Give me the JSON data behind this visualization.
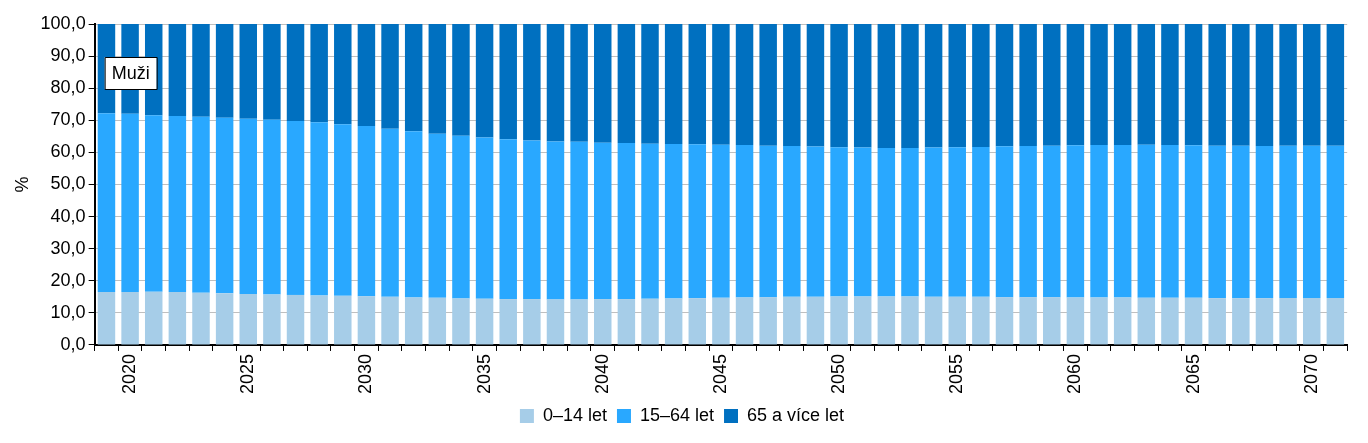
{
  "chart_data": {
    "type": "bar",
    "stacked": true,
    "ylabel": "%",
    "annotations": [
      "Muži"
    ],
    "categories": [
      null,
      "2020",
      null,
      null,
      null,
      null,
      "2025",
      null,
      null,
      null,
      null,
      "2030",
      null,
      null,
      null,
      null,
      "2035",
      null,
      null,
      null,
      null,
      "2040",
      null,
      null,
      null,
      null,
      "2045",
      null,
      null,
      null,
      null,
      "2050",
      null,
      null,
      null,
      null,
      "2055",
      null,
      null,
      null,
      null,
      "2060",
      null,
      null,
      null,
      null,
      "2065",
      null,
      null,
      null,
      null,
      "2070",
      null
    ],
    "series": [
      {
        "name": "0–14 let",
        "color": "#a6cde8",
        "values": [
          16.5,
          16.5,
          16.6,
          16.5,
          16.3,
          16.1,
          15.9,
          15.7,
          15.6,
          15.4,
          15.3,
          15.2,
          15.0,
          14.8,
          14.7,
          14.5,
          14.4,
          14.3,
          14.3,
          14.2,
          14.2,
          14.3,
          14.3,
          14.4,
          14.5,
          14.6,
          14.7,
          14.8,
          14.9,
          15.0,
          15.0,
          15.1,
          15.1,
          15.1,
          15.1,
          15.0,
          15.0,
          15.0,
          14.9,
          14.9,
          14.9,
          14.8,
          14.8,
          14.8,
          14.7,
          14.7,
          14.7,
          14.6,
          14.6,
          14.6,
          14.6,
          14.6,
          14.6
        ]
      },
      {
        "name": "15–64 let",
        "color": "#29a8ff",
        "values": [
          55.7,
          55.5,
          55.0,
          54.8,
          54.8,
          54.7,
          54.6,
          54.5,
          54.2,
          54.0,
          53.5,
          53.0,
          52.4,
          51.8,
          51.1,
          50.7,
          50.2,
          49.8,
          49.4,
          49.2,
          49.1,
          48.7,
          48.6,
          48.3,
          48.1,
          47.9,
          47.7,
          47.5,
          47.2,
          47.0,
          46.8,
          46.5,
          46.4,
          46.3,
          46.3,
          46.5,
          46.6,
          46.7,
          47.0,
          47.1,
          47.2,
          47.4,
          47.5,
          47.5,
          47.7,
          47.6,
          47.5,
          47.5,
          47.5,
          47.4,
          47.5,
          47.5,
          47.5
        ]
      },
      {
        "name": "65 a více let",
        "color": "#0070c0",
        "values": [
          27.8,
          28.0,
          28.4,
          28.7,
          28.9,
          29.2,
          29.5,
          29.8,
          30.2,
          30.6,
          31.2,
          31.8,
          32.6,
          33.4,
          34.2,
          34.8,
          35.4,
          35.9,
          36.3,
          36.6,
          36.7,
          37.0,
          37.1,
          37.3,
          37.4,
          37.5,
          37.6,
          37.7,
          37.9,
          38.0,
          38.2,
          38.4,
          38.5,
          38.6,
          38.6,
          38.5,
          38.4,
          38.3,
          38.1,
          38.0,
          37.9,
          37.8,
          37.7,
          37.7,
          37.6,
          37.7,
          37.8,
          37.9,
          37.9,
          38.0,
          37.9,
          37.9,
          37.9
        ]
      }
    ],
    "ylim": [
      0,
      100
    ],
    "yticks": [
      {
        "value": 0,
        "label": "0,0"
      },
      {
        "value": 10,
        "label": "10,0"
      },
      {
        "value": 20,
        "label": "20,0"
      },
      {
        "value": 30,
        "label": "30,0"
      },
      {
        "value": 40,
        "label": "40,0"
      },
      {
        "value": 50,
        "label": "50,0"
      },
      {
        "value": 60,
        "label": "60,0"
      },
      {
        "value": 70,
        "label": "70,0"
      },
      {
        "value": 80,
        "label": "80,0"
      },
      {
        "value": 90,
        "label": "90,0"
      },
      {
        "value": 100,
        "label": "100,0"
      }
    ],
    "grid": "y",
    "legend": "bottom"
  }
}
